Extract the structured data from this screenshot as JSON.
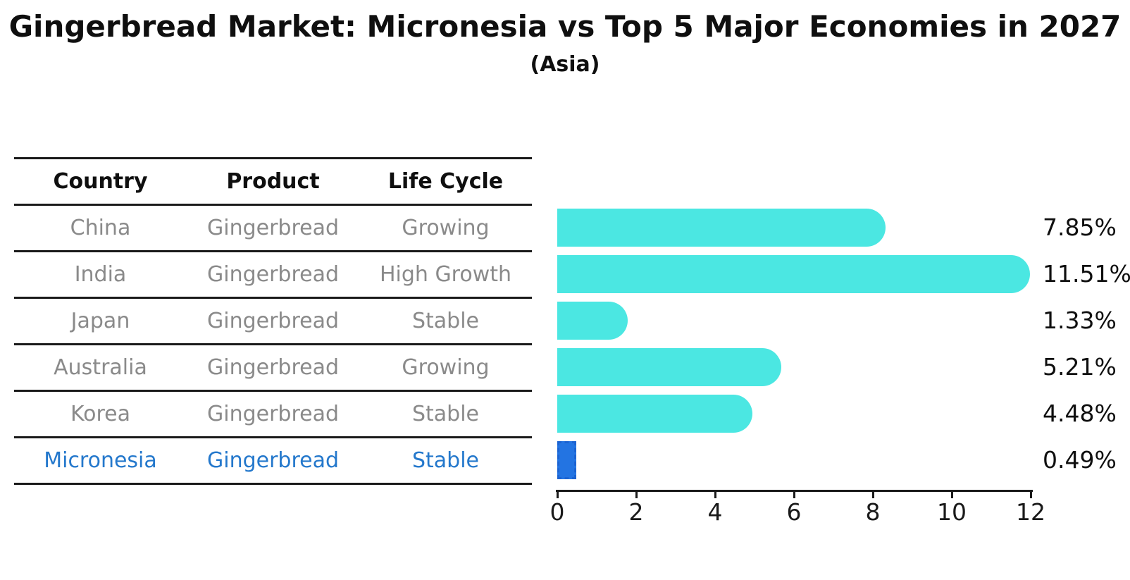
{
  "title": "Gingerbread Market: Micronesia vs Top 5 Major Economies in 2027",
  "subtitle": "(Asia)",
  "table": {
    "headers": [
      "Country",
      "Product",
      "Life Cycle"
    ],
    "rows": [
      {
        "country": "China",
        "product": "Gingerbread",
        "life_cycle": "Growing",
        "highlight": false
      },
      {
        "country": "India",
        "product": "Gingerbread",
        "life_cycle": "High Growth",
        "highlight": false
      },
      {
        "country": "Japan",
        "product": "Gingerbread",
        "life_cycle": "Stable",
        "highlight": false
      },
      {
        "country": "Australia",
        "product": "Gingerbread",
        "life_cycle": "Growing",
        "highlight": false
      },
      {
        "country": "Korea",
        "product": "Gingerbread",
        "life_cycle": "Stable",
        "highlight": false
      },
      {
        "country": "Micronesia",
        "product": "Gingerbread",
        "life_cycle": "Stable",
        "highlight": true
      }
    ]
  },
  "chart_data": {
    "type": "bar",
    "orientation": "horizontal",
    "title": "Gingerbread Market: Micronesia vs Top 5 Major Economies in 2027",
    "subtitle": "(Asia)",
    "categories": [
      "China",
      "India",
      "Japan",
      "Australia",
      "Korea",
      "Micronesia"
    ],
    "values": [
      7.85,
      11.51,
      1.33,
      5.21,
      4.48,
      0.49
    ],
    "value_labels": [
      "7.85%",
      "11.51%",
      "1.33%",
      "5.21%",
      "4.48%",
      "0.49%"
    ],
    "xlabel": "",
    "ylabel": "",
    "xlim": [
      0,
      12
    ],
    "x_ticks": [
      0,
      2,
      4,
      6,
      8,
      10,
      12
    ],
    "grid": false,
    "legend": false,
    "bar_color": "#4BE7E2",
    "highlight_index": 5,
    "highlight_bar_color": "#2374E2",
    "highlight_border_color": "#1B63D2"
  },
  "colors": {
    "title": "#0F0F0F",
    "table_text": "#8A8A8A",
    "highlight_text": "#2478CC",
    "axis": "#1A1A1A"
  }
}
